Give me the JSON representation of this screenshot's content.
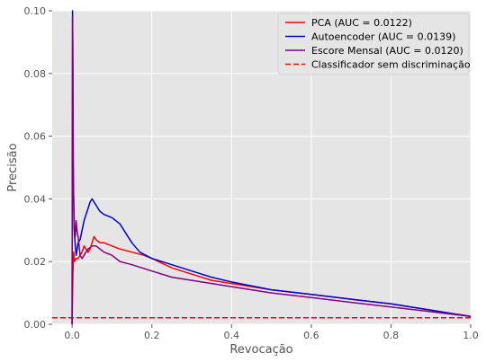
{
  "chart_data": {
    "type": "line",
    "title": "",
    "xlabel": "Revocação",
    "ylabel": "Precisão",
    "xlim": [
      -0.05,
      1.0
    ],
    "ylim": [
      0.0,
      0.1
    ],
    "xticks": [
      0.0,
      0.2,
      0.4,
      0.6,
      0.8,
      1.0
    ],
    "xtick_labels": [
      "0.0",
      "0.2",
      "0.4",
      "0.6",
      "0.8",
      "1.0"
    ],
    "yticks": [
      0.0,
      0.02,
      0.04,
      0.06,
      0.08,
      0.1
    ],
    "ytick_labels": [
      "0.00",
      "0.02",
      "0.04",
      "0.06",
      "0.08",
      "0.10"
    ],
    "grid": true,
    "legend_position": "top-right",
    "series": [
      {
        "name": "PCA (AUC = 0.0122)",
        "color": "#ff0000",
        "style": "solid",
        "x": [
          0.0,
          0.002,
          0.004,
          0.006,
          0.01,
          0.015,
          0.02,
          0.025,
          0.03,
          0.035,
          0.04,
          0.045,
          0.05,
          0.055,
          0.06,
          0.07,
          0.08,
          0.1,
          0.12,
          0.15,
          0.18,
          0.2,
          0.25,
          0.3,
          0.35,
          0.4,
          0.5,
          0.6,
          0.7,
          0.8,
          0.9,
          1.0
        ],
        "y": [
          0.0,
          0.016,
          0.023,
          0.02,
          0.021,
          0.021,
          0.022,
          0.023,
          0.025,
          0.024,
          0.023,
          0.024,
          0.026,
          0.028,
          0.027,
          0.026,
          0.026,
          0.025,
          0.024,
          0.023,
          0.022,
          0.021,
          0.018,
          0.016,
          0.014,
          0.013,
          0.011,
          0.0095,
          0.008,
          0.0065,
          0.0045,
          0.0025
        ]
      },
      {
        "name": "Autoencoder (AUC = 0.0139)",
        "color": "#0000cc",
        "style": "solid",
        "x": [
          0.0,
          0.001,
          0.002,
          0.003,
          0.005,
          0.008,
          0.01,
          0.015,
          0.02,
          0.025,
          0.03,
          0.035,
          0.04,
          0.045,
          0.05,
          0.055,
          0.06,
          0.07,
          0.08,
          0.1,
          0.12,
          0.14,
          0.15,
          0.17,
          0.2,
          0.25,
          0.3,
          0.35,
          0.4,
          0.5,
          0.6,
          0.7,
          0.8,
          0.9,
          1.0
        ],
        "y": [
          0.0,
          0.1,
          0.06,
          0.045,
          0.03,
          0.025,
          0.022,
          0.026,
          0.027,
          0.03,
          0.033,
          0.035,
          0.037,
          0.039,
          0.04,
          0.039,
          0.038,
          0.036,
          0.035,
          0.034,
          0.032,
          0.028,
          0.026,
          0.023,
          0.021,
          0.019,
          0.017,
          0.015,
          0.0135,
          0.011,
          0.0095,
          0.008,
          0.0065,
          0.0045,
          0.0025
        ]
      },
      {
        "name": "Escore Mensal (AUC = 0.0120)",
        "color": "#800080",
        "style": "solid",
        "x": [
          0.0,
          0.001,
          0.002,
          0.003,
          0.004,
          0.006,
          0.008,
          0.01,
          0.012,
          0.015,
          0.02,
          0.025,
          0.03,
          0.035,
          0.04,
          0.05,
          0.06,
          0.07,
          0.08,
          0.1,
          0.12,
          0.15,
          0.2,
          0.25,
          0.3,
          0.35,
          0.4,
          0.5,
          0.6,
          0.7,
          0.8,
          0.9,
          1.0
        ],
        "y": [
          0.0,
          0.098,
          0.088,
          0.05,
          0.04,
          0.03,
          0.028,
          0.033,
          0.03,
          0.028,
          0.022,
          0.021,
          0.022,
          0.023,
          0.024,
          0.025,
          0.025,
          0.024,
          0.023,
          0.022,
          0.02,
          0.019,
          0.017,
          0.015,
          0.014,
          0.013,
          0.012,
          0.01,
          0.0085,
          0.007,
          0.0055,
          0.004,
          0.0025
        ]
      },
      {
        "name": "Classificador sem discriminação",
        "color": "#ff0000",
        "style": "dashed",
        "x": [
          -0.05,
          1.0
        ],
        "y": [
          0.0021,
          0.0021
        ]
      }
    ]
  }
}
